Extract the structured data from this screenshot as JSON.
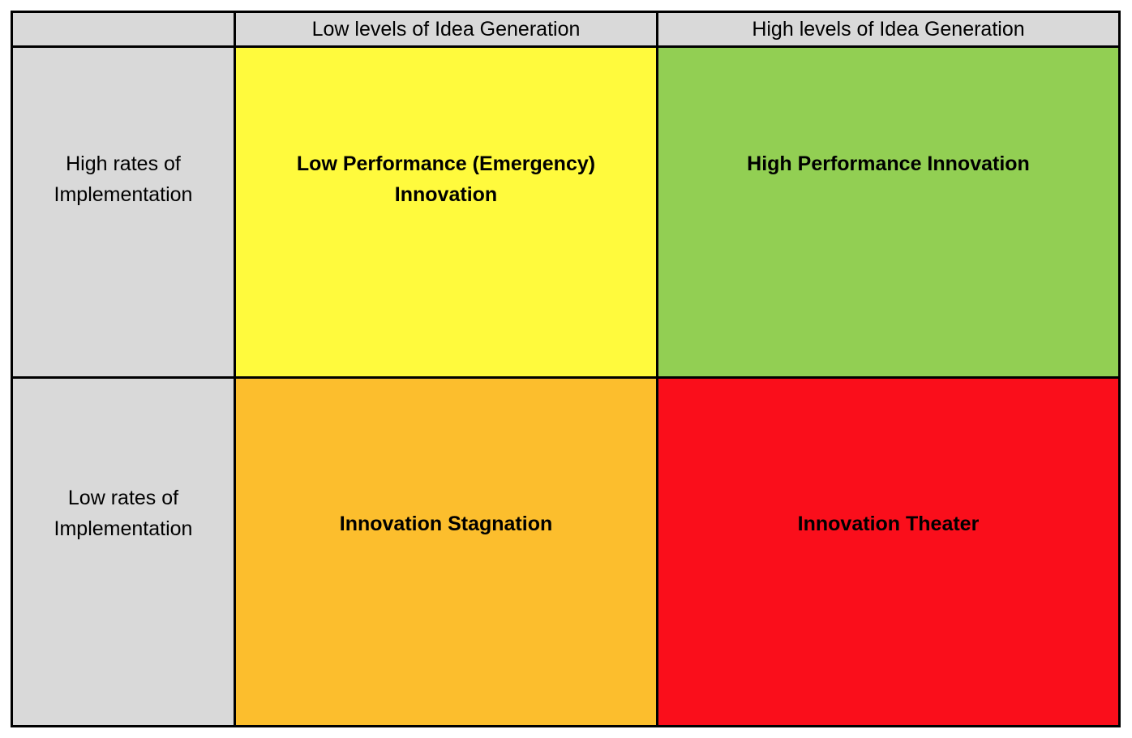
{
  "page": {
    "background_color": "#FFFFFF",
    "border_color": "#000000",
    "text_color": "#000000"
  },
  "matrix": {
    "header": {
      "corner": "",
      "col_low": "Low levels of Idea Generation",
      "col_high": "High levels of Idea Generation"
    },
    "row_labels": {
      "high_implementation": "High rates of Implementation",
      "low_implementation": "Low rates of Implementation"
    },
    "quadrants": {
      "top_left": {
        "title": "Low Performance (Emergency) Innovation",
        "row": "High rates of Implementation",
        "column": "Low levels of Idea Generation",
        "color": "#FFFA3D"
      },
      "top_right": {
        "title": "High Performance Innovation",
        "row": "High rates of Implementation",
        "column": "High levels of Idea Generation",
        "color": "#92CF53"
      },
      "bottom_left": {
        "title": "Innovation Stagnation",
        "row": "Low rates of Implementation",
        "column": "Low levels of Idea Generation",
        "color": "#FCBE2D"
      },
      "bottom_right": {
        "title": "Innovation Theater",
        "row": "Low rates of Implementation",
        "column": "High levels of Idea Generation",
        "color": "#FA0E1B"
      }
    },
    "colors": {
      "header_bg": "#D9D9D9",
      "label_bg": "#D9D9D9"
    }
  }
}
